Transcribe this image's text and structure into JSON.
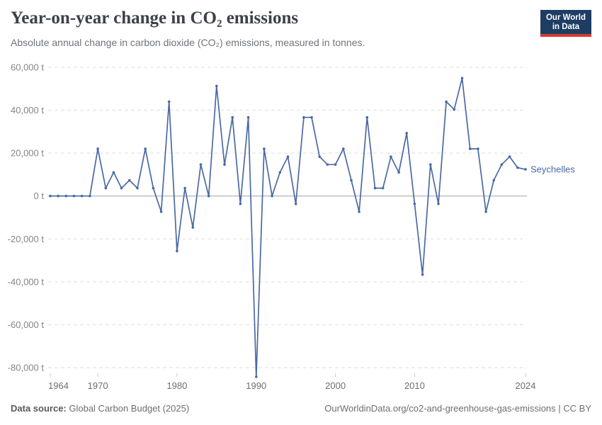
{
  "header": {
    "title": "Year-on-year change in CO₂ emissions",
    "subtitle": "Absolute annual change in carbon dioxide (CO₂) emissions, measured in tonnes.",
    "logo": {
      "line1": "Our World",
      "line2": "in Data"
    }
  },
  "chart_data": {
    "type": "line",
    "title": "Year-on-year change in CO₂ emissions",
    "subtitle": "Absolute annual change in carbon dioxide (CO₂) emissions, measured in tonnes.",
    "entity": "Seychelles",
    "unit": "t",
    "grid": true,
    "legend_position": "end-of-line-label",
    "xlim": [
      1964,
      2024
    ],
    "ylim": [
      -85000,
      60000
    ],
    "x": [
      1964,
      1965,
      1966,
      1967,
      1968,
      1969,
      1970,
      1971,
      1972,
      1973,
      1974,
      1975,
      1976,
      1977,
      1978,
      1979,
      1980,
      1981,
      1982,
      1983,
      1984,
      1985,
      1986,
      1987,
      1988,
      1989,
      1990,
      1991,
      1992,
      1993,
      1994,
      1995,
      1996,
      1997,
      1998,
      1999,
      2000,
      2001,
      2002,
      2003,
      2004,
      2005,
      2006,
      2007,
      2008,
      2009,
      2010,
      2011,
      2012,
      2013,
      2014,
      2015,
      2016,
      2017,
      2018,
      2019,
      2020,
      2021,
      2022,
      2023,
      2024
    ],
    "values": [
      0,
      0,
      0,
      0,
      0,
      0,
      21984,
      3664,
      10992,
      3664,
      7328,
      3664,
      21984,
      3664,
      -7328,
      43968,
      -25648,
      3664,
      -14656,
      14656,
      0,
      51296,
      14656,
      36640,
      -3664,
      36640,
      -84272,
      21984,
      0,
      10992,
      18320,
      -3664,
      36640,
      36640,
      18320,
      14656,
      14656,
      21984,
      7328,
      -7328,
      36640,
      3664,
      3664,
      18320,
      10992,
      29312,
      -3664,
      -36640,
      14656,
      -3664,
      43968,
      40304,
      54960,
      21984,
      21984,
      -7328,
      7328,
      14656,
      18320,
      13200,
      12400
    ],
    "xticks": [
      1964,
      1970,
      1980,
      1990,
      2000,
      2010,
      2024
    ],
    "yticks": [
      60000,
      40000,
      20000,
      0,
      -20000,
      -40000,
      -60000,
      -80000
    ],
    "ytick_labels": [
      "60,000 t",
      "40,000 t",
      "20,000 t",
      "0 t",
      "-20,000 t",
      "-40,000 t",
      "-60,000 t",
      "-80,000 t"
    ],
    "line_color": "#4a69a5",
    "series_end_label": "Seychelles"
  },
  "footer": {
    "source_label": "Data source:",
    "source_value": " Global Carbon Budget (2025)",
    "attribution": "OurWorldinData.org/co2-and-greenhouse-gas-emissions | CC BY"
  }
}
